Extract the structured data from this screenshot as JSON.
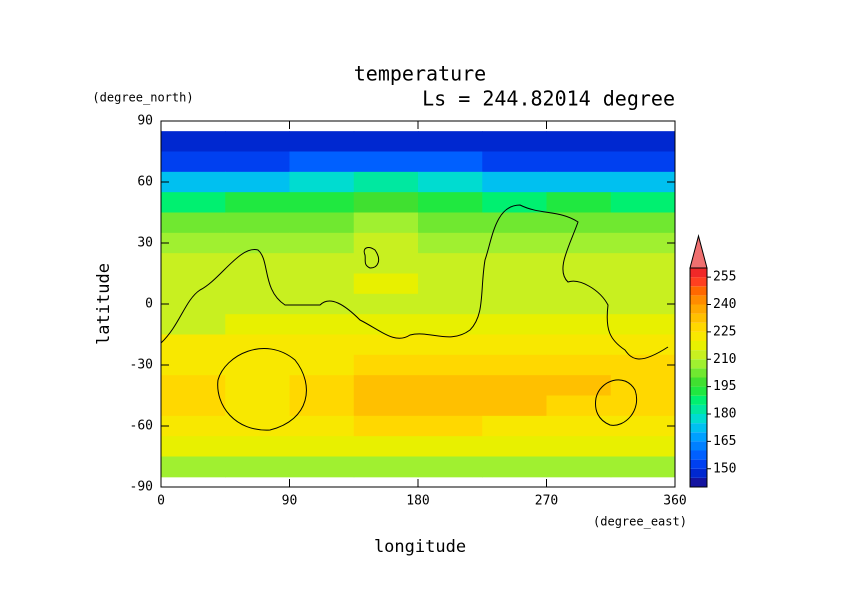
{
  "chart_data": {
    "type": "contour",
    "title": "temperature",
    "subtitle": "Ls = 244.82014 degree",
    "x_label": "longitude",
    "x_unit": "(degree_east)",
    "y_label": "latitude",
    "y_unit": "(degree_north)",
    "xlim": [
      0,
      360
    ],
    "xticks": [
      0,
      90,
      180,
      270,
      360
    ],
    "ylim": [
      -90,
      90
    ],
    "yticks": [
      90,
      60,
      30,
      0,
      -30,
      -60,
      -90
    ],
    "lon": [
      22.5,
      67.5,
      112.5,
      157.5,
      202.5,
      247.5,
      292.5,
      337.5
    ],
    "lat": [
      80,
      70,
      60,
      50,
      40,
      30,
      20,
      10,
      0,
      -10,
      -20,
      -30,
      -40,
      -50,
      -60,
      -70,
      -80
    ],
    "values": [
      [
        148,
        148,
        148,
        148,
        148,
        148,
        148,
        148
      ],
      [
        152,
        152,
        155,
        158,
        155,
        152,
        152,
        152
      ],
      [
        170,
        172,
        178,
        182,
        178,
        172,
        170,
        170
      ],
      [
        188,
        190,
        193,
        196,
        192,
        188,
        190,
        188
      ],
      [
        200,
        200,
        202,
        205,
        203,
        200,
        200,
        200
      ],
      [
        206,
        207,
        208,
        210,
        208,
        207,
        206,
        206
      ],
      [
        211,
        212,
        212,
        213,
        212,
        211,
        211,
        211
      ],
      [
        213,
        213,
        214,
        215,
        214,
        213,
        213,
        213
      ],
      [
        211,
        212,
        214,
        214,
        214,
        213,
        214,
        213
      ],
      [
        214,
        215,
        215,
        215,
        215,
        215,
        216,
        215
      ],
      [
        221,
        220,
        220,
        221,
        222,
        222,
        222,
        222
      ],
      [
        224,
        223,
        224,
        228,
        228,
        229,
        228,
        228
      ],
      [
        226,
        224,
        225,
        233,
        234,
        230,
        231,
        229
      ],
      [
        225,
        224,
        226,
        230,
        231,
        230,
        229,
        229
      ],
      [
        222,
        222,
        222,
        226,
        225,
        223,
        222,
        222
      ],
      [
        216,
        216,
        216,
        217,
        217,
        216,
        216,
        216
      ],
      [
        206,
        206,
        206,
        207,
        207,
        206,
        206,
        206
      ]
    ],
    "colorbar": {
      "levels": [
        140,
        145,
        150,
        155,
        160,
        165,
        170,
        175,
        180,
        185,
        190,
        195,
        200,
        205,
        210,
        215,
        220,
        225,
        230,
        235,
        240,
        245,
        250,
        255,
        260
      ],
      "colors": [
        "#1414a0",
        "#0028d0",
        "#0040f0",
        "#0060ff",
        "#0080ff",
        "#00a0ff",
        "#00c0f0",
        "#00dcd0",
        "#00e8a0",
        "#00f070",
        "#20e840",
        "#40e030",
        "#70e830",
        "#a0f030",
        "#c8f020",
        "#e8f000",
        "#f8e800",
        "#ffd800",
        "#ffc000",
        "#ffa800",
        "#ff8c00",
        "#ff6800",
        "#ff4020",
        "#f02828"
      ],
      "extend_color": "#f07070",
      "ticks": [
        150,
        165,
        180,
        195,
        210,
        225,
        240,
        255
      ]
    }
  }
}
